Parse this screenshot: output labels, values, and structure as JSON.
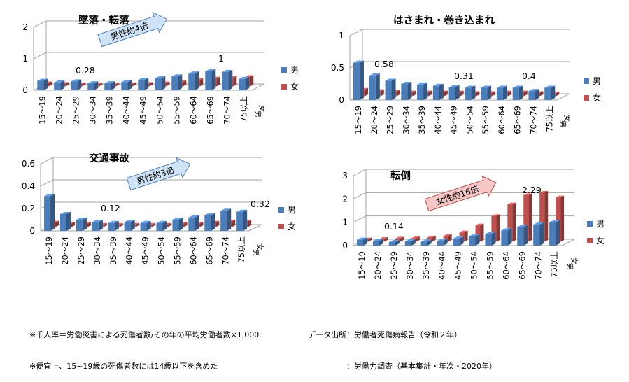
{
  "chart_data": [
    {
      "type": "bar",
      "title": "墜落・転落",
      "categories": [
        "15～19",
        "20～24",
        "25～29",
        "30～34",
        "35～39",
        "40～44",
        "45～49",
        "50～54",
        "55～59",
        "60～64",
        "65～69",
        "70～74",
        "75以上"
      ],
      "series": [
        {
          "name": "男",
          "values": [
            0.3,
            0.25,
            0.28,
            0.22,
            0.22,
            0.26,
            0.33,
            0.38,
            0.44,
            0.53,
            0.6,
            0.58,
            0.36
          ],
          "color": "#4a7ebb"
        },
        {
          "name": "女",
          "values": [
            0.1,
            0.08,
            0.07,
            0.06,
            0.06,
            0.07,
            0.08,
            0.1,
            0.14,
            0.2,
            0.25,
            0.28,
            0.3
          ],
          "color": "#c0504d"
        }
      ],
      "yticks": [
        "0",
        "1",
        "2"
      ],
      "ylim": [
        0,
        2
      ],
      "callouts": [
        "0.28",
        "1"
      ],
      "arrow_label": "男性約4倍",
      "depth_labels": [
        "女",
        "男"
      ],
      "legend": [
        "男",
        "女"
      ]
    },
    {
      "type": "bar",
      "title": "はさまれ・巻き込まれ",
      "categories": [
        "15～19",
        "20～24",
        "25～29",
        "30～34",
        "35～39",
        "40～44",
        "45～49",
        "50～54",
        "55～59",
        "60～64",
        "65～69",
        "70～74",
        "75以上"
      ],
      "series": [
        {
          "name": "男",
          "values": [
            0.58,
            0.38,
            0.3,
            0.25,
            0.24,
            0.22,
            0.2,
            0.19,
            0.19,
            0.19,
            0.19,
            0.14,
            0.19
          ],
          "color": "#4a7ebb"
        },
        {
          "name": "女",
          "values": [
            0.1,
            0.08,
            0.07,
            0.06,
            0.06,
            0.06,
            0.06,
            0.05,
            0.05,
            0.06,
            0.06,
            0.05,
            0.04
          ],
          "color": "#c0504d"
        }
      ],
      "yticks": [
        "0",
        "0.5",
        "1"
      ],
      "ylim": [
        0,
        1
      ],
      "callouts": [
        "0.58",
        "0.31",
        "0.4"
      ],
      "depth_labels": [
        "女",
        "男"
      ],
      "legend": [
        "男",
        "女"
      ]
    },
    {
      "type": "bar",
      "title": "交通事故",
      "categories": [
        "15～19",
        "20～24",
        "25～29",
        "30～34",
        "35～39",
        "40～44",
        "45～49",
        "50～54",
        "55～59",
        "60～64",
        "65～69",
        "70～74",
        "75以上"
      ],
      "series": [
        {
          "name": "男",
          "values": [
            0.31,
            0.15,
            0.1,
            0.08,
            0.07,
            0.08,
            0.07,
            0.07,
            0.1,
            0.12,
            0.14,
            0.18,
            0.17
          ],
          "color": "#4a7ebb"
        },
        {
          "name": "女",
          "values": [
            0.04,
            0.03,
            0.03,
            0.02,
            0.02,
            0.02,
            0.02,
            0.02,
            0.03,
            0.03,
            0.04,
            0.05,
            0.05
          ],
          "color": "#c0504d"
        }
      ],
      "yticks": [
        "0",
        "0.2",
        "0.4",
        "0.6"
      ],
      "ylim": [
        0,
        0.6
      ],
      "callouts": [
        "0.12",
        "0.32"
      ],
      "arrow_label": "男性約3倍",
      "depth_labels": [
        "女",
        "男"
      ],
      "legend": [
        "男",
        "女"
      ]
    },
    {
      "type": "bar",
      "title": "転倒",
      "categories": [
        "15～19",
        "20～24",
        "25～29",
        "30～34",
        "35～39",
        "40～44",
        "45～49",
        "50～54",
        "55～59",
        "60～64",
        "65～69",
        "70～74",
        "75以上"
      ],
      "series": [
        {
          "name": "男",
          "values": [
            0.25,
            0.2,
            0.15,
            0.18,
            0.17,
            0.2,
            0.3,
            0.4,
            0.5,
            0.65,
            0.8,
            0.9,
            1.0
          ],
          "color": "#4a7ebb"
        },
        {
          "name": "女",
          "values": [
            0.1,
            0.12,
            0.14,
            0.15,
            0.18,
            0.25,
            0.4,
            0.7,
            1.1,
            1.6,
            2.0,
            2.1,
            1.9
          ],
          "color": "#c0504d"
        }
      ],
      "yticks": [
        "0",
        "1",
        "2",
        "3"
      ],
      "ylim": [
        0,
        3
      ],
      "callouts": [
        "0.14",
        "2.29"
      ],
      "arrow_label": "女性約16倍",
      "depth_labels": [
        "女",
        "男"
      ],
      "legend": [
        "男",
        "女"
      ]
    }
  ],
  "notes": {
    "left": [
      "※千人率＝労働災害による死傷者数/その年の平均労働者数×1,000",
      "※便宜上、15~19歳の死傷者数には14歳以下を含めた"
    ],
    "right": [
      "データ出所：労働者死傷病報告（令和２年）",
      "　　　　　：労働力調査（基本集計・年次・2020年）"
    ]
  }
}
